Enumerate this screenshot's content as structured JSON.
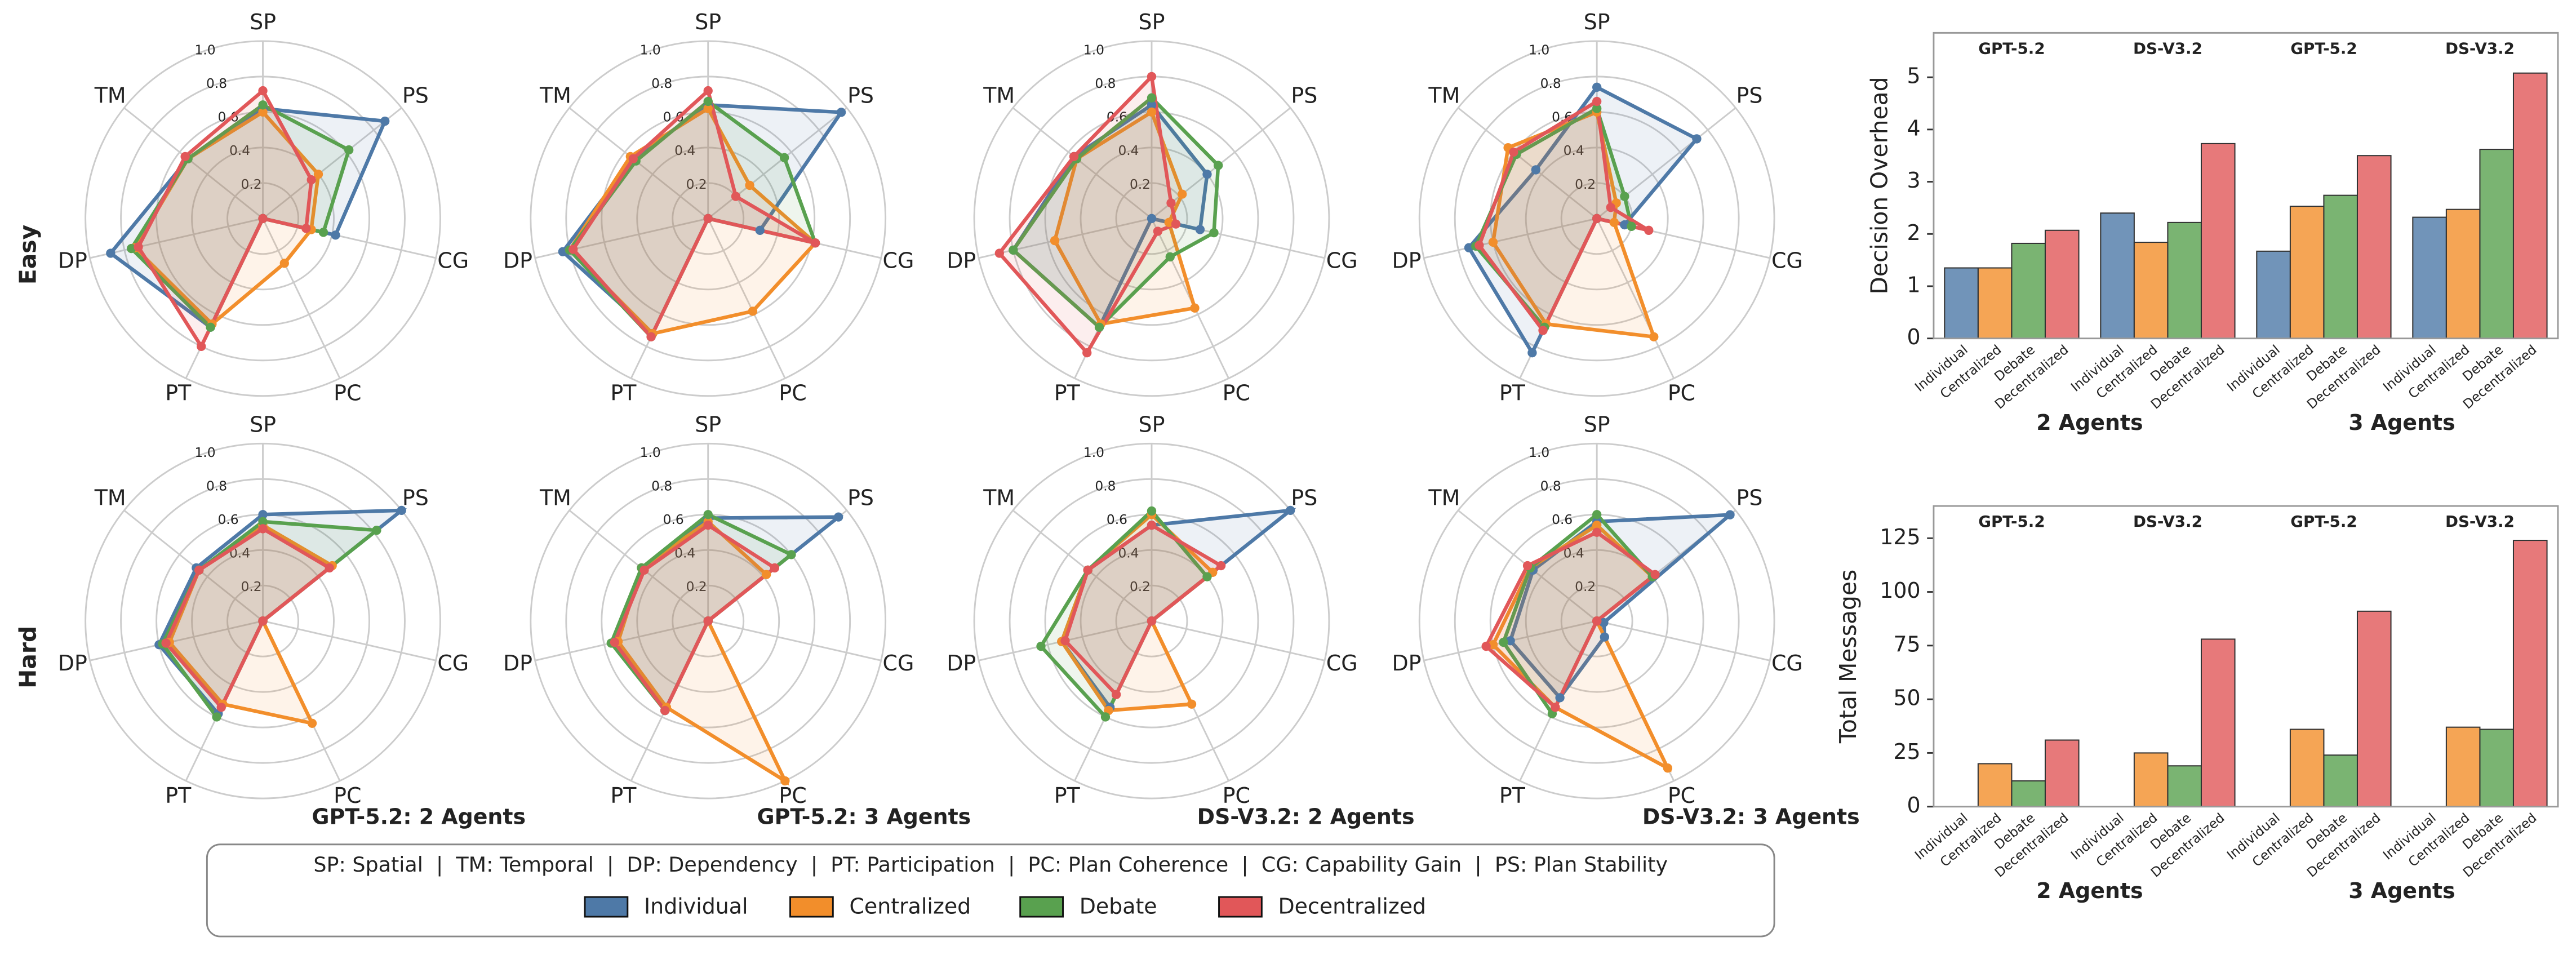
{
  "chart_data": [
    {
      "type": "radar",
      "row_label": "Easy",
      "axes": [
        "SP",
        "PS",
        "CG",
        "PC",
        "PT",
        "DP",
        "TM"
      ],
      "rlim": [
        0,
        1
      ],
      "rticks": [
        0.2,
        0.4,
        0.6,
        0.8,
        {
          "value": 1,
          "label": "1.0"
        }
      ],
      "series": [
        {
          "name": "Individual",
          "color": "#4e79a7",
          "values": [
            0.62,
            0.88,
            0.42,
            0,
            0.68,
            0.88,
            0.54
          ]
        },
        {
          "name": "Centralized",
          "color": "#f28e2b",
          "values": [
            0.6,
            0.4,
            0.28,
            0.28,
            0.66,
            0.74,
            0.54
          ]
        },
        {
          "name": "Debate",
          "color": "#59a14f",
          "values": [
            0.64,
            0.62,
            0.35,
            0,
            0.68,
            0.76,
            0.54
          ]
        },
        {
          "name": "Decentralized",
          "color": "#e15759",
          "values": [
            0.72,
            0.35,
            0.25,
            0,
            0.8,
            0.72,
            0.56
          ]
        }
      ]
    },
    {
      "type": "radar",
      "axes": [
        "SP",
        "PS",
        "CG",
        "PC",
        "PT",
        "DP",
        "TM"
      ],
      "rlim": [
        0,
        1
      ],
      "rticks": [
        0.2,
        0.4,
        0.6,
        0.8,
        {
          "value": 1,
          "label": "1.0"
        }
      ],
      "series": [
        {
          "name": "Individual",
          "color": "#4e79a7",
          "values": [
            0.64,
            0.96,
            0.3,
            0,
            0.72,
            0.84,
            0.54
          ]
        },
        {
          "name": "Centralized",
          "color": "#f28e2b",
          "values": [
            0.62,
            0.3,
            0.62,
            0.58,
            0.72,
            0.8,
            0.56
          ]
        },
        {
          "name": "Debate",
          "color": "#59a14f",
          "values": [
            0.66,
            0.55,
            0.62,
            0,
            0.74,
            0.8,
            0.52
          ]
        },
        {
          "name": "Decentralized",
          "color": "#e15759",
          "values": [
            0.72,
            0.2,
            0.62,
            0,
            0.74,
            0.78,
            0.54
          ]
        }
      ]
    },
    {
      "type": "radar",
      "axes": [
        "SP",
        "PS",
        "CG",
        "PC",
        "PT",
        "DP",
        "TM"
      ],
      "rlim": [
        0,
        1
      ],
      "rticks": [
        0.2,
        0.4,
        0.6,
        0.8,
        {
          "value": 1,
          "label": "1.0"
        }
      ],
      "series": [
        {
          "name": "Individual",
          "color": "#4e79a7",
          "values": [
            0.64,
            0.4,
            0.28,
            0,
            0.68,
            0.8,
            0.56
          ]
        },
        {
          "name": "Centralized",
          "color": "#f28e2b",
          "values": [
            0.6,
            0.22,
            0.1,
            0.56,
            0.66,
            0.56,
            0.54
          ]
        },
        {
          "name": "Debate",
          "color": "#59a14f",
          "values": [
            0.68,
            0.48,
            0.36,
            0.24,
            0.68,
            0.8,
            0.54
          ]
        },
        {
          "name": "Decentralized",
          "color": "#e15759",
          "values": [
            0.8,
            0.14,
            0.14,
            0.08,
            0.84,
            0.88,
            0.56
          ]
        }
      ]
    },
    {
      "type": "radar",
      "axes": [
        "SP",
        "PS",
        "CG",
        "PC",
        "PT",
        "DP",
        "TM"
      ],
      "rlim": [
        0,
        1
      ],
      "rticks": [
        0.2,
        0.4,
        0.6,
        0.8,
        {
          "value": 1,
          "label": "1.0"
        }
      ],
      "series": [
        {
          "name": "Individual",
          "color": "#4e79a7",
          "values": [
            0.74,
            0.72,
            0.16,
            0,
            0.84,
            0.74,
            0.44
          ]
        },
        {
          "name": "Centralized",
          "color": "#f28e2b",
          "values": [
            0.6,
            0.14,
            0.1,
            0.74,
            0.66,
            0.6,
            0.64
          ]
        },
        {
          "name": "Debate",
          "color": "#59a14f",
          "values": [
            0.62,
            0.2,
            0.2,
            0,
            0.68,
            0.7,
            0.58
          ]
        },
        {
          "name": "Decentralized",
          "color": "#e15759",
          "values": [
            0.66,
            0.1,
            0.3,
            0,
            0.7,
            0.68,
            0.6
          ]
        }
      ]
    },
    {
      "type": "radar",
      "row_label": "Hard",
      "title": "GPT-5.2: 2 Agents",
      "axes": [
        "SP",
        "PS",
        "CG",
        "PC",
        "PT",
        "DP",
        "TM"
      ],
      "rlim": [
        0,
        1
      ],
      "rticks": [
        0.2,
        0.4,
        0.6,
        0.8,
        {
          "value": 1,
          "label": "1.0"
        }
      ],
      "series": [
        {
          "name": "Individual",
          "color": "#4e79a7",
          "values": [
            0.6,
            1.0,
            0,
            0,
            0.58,
            0.6,
            0.48
          ]
        },
        {
          "name": "Centralized",
          "color": "#f28e2b",
          "values": [
            0.54,
            0.5,
            0,
            0.64,
            0.52,
            0.54,
            0.46
          ]
        },
        {
          "name": "Debate",
          "color": "#59a14f",
          "values": [
            0.56,
            0.82,
            0,
            0,
            0.6,
            0.58,
            0.46
          ]
        },
        {
          "name": "Decentralized",
          "color": "#e15759",
          "values": [
            0.52,
            0.48,
            0,
            0,
            0.54,
            0.56,
            0.46
          ]
        }
      ]
    },
    {
      "type": "radar",
      "title": "GPT-5.2: 3 Agents",
      "axes": [
        "SP",
        "PS",
        "CG",
        "PC",
        "PT",
        "DP",
        "TM"
      ],
      "rlim": [
        0,
        1
      ],
      "rticks": [
        0.2,
        0.4,
        0.6,
        0.8,
        {
          "value": 1,
          "label": "1.0"
        }
      ],
      "series": [
        {
          "name": "Individual",
          "color": "#4e79a7",
          "values": [
            0.58,
            0.94,
            0,
            0,
            0.56,
            0.54,
            0.48
          ]
        },
        {
          "name": "Centralized",
          "color": "#f28e2b",
          "values": [
            0.56,
            0.42,
            0,
            1.0,
            0.54,
            0.52,
            0.48
          ]
        },
        {
          "name": "Debate",
          "color": "#59a14f",
          "values": [
            0.6,
            0.6,
            0,
            0,
            0.56,
            0.56,
            0.48
          ]
        },
        {
          "name": "Decentralized",
          "color": "#e15759",
          "values": [
            0.54,
            0.48,
            0,
            0,
            0.56,
            0.54,
            0.46
          ]
        }
      ]
    },
    {
      "type": "radar",
      "title": "DS-V3.2: 2 Agents",
      "axes": [
        "SP",
        "PS",
        "CG",
        "PC",
        "PT",
        "DP",
        "TM"
      ],
      "rlim": [
        0,
        1
      ],
      "rticks": [
        0.2,
        0.4,
        0.6,
        0.8,
        {
          "value": 1,
          "label": "1.0"
        }
      ],
      "series": [
        {
          "name": "Individual",
          "color": "#4e79a7",
          "values": [
            0.54,
            1.0,
            0,
            0,
            0.54,
            0.52,
            0.46
          ]
        },
        {
          "name": "Centralized",
          "color": "#f28e2b",
          "values": [
            0.6,
            0.44,
            0,
            0.52,
            0.56,
            0.52,
            0.46
          ]
        },
        {
          "name": "Debate",
          "color": "#59a14f",
          "values": [
            0.62,
            0.4,
            0,
            0,
            0.6,
            0.64,
            0.46
          ]
        },
        {
          "name": "Decentralized",
          "color": "#e15759",
          "values": [
            0.54,
            0.5,
            0,
            0,
            0.46,
            0.5,
            0.46
          ]
        }
      ]
    },
    {
      "type": "radar",
      "title": "DS-V3.2: 3 Agents",
      "axes": [
        "SP",
        "PS",
        "CG",
        "PC",
        "PT",
        "DP",
        "TM"
      ],
      "rlim": [
        0,
        1
      ],
      "rticks": [
        0.2,
        0.4,
        0.6,
        0.8,
        {
          "value": 1,
          "label": "1.0"
        }
      ],
      "series": [
        {
          "name": "Individual",
          "color": "#4e79a7",
          "values": [
            0.56,
            0.96,
            0.04,
            0.1,
            0.48,
            0.5,
            0.46
          ]
        },
        {
          "name": "Centralized",
          "color": "#f28e2b",
          "values": [
            0.54,
            0.4,
            0,
            0.92,
            0.54,
            0.6,
            0.48
          ]
        },
        {
          "name": "Debate",
          "color": "#59a14f",
          "values": [
            0.6,
            0.4,
            0,
            0,
            0.58,
            0.54,
            0.48
          ]
        },
        {
          "name": "Decentralized",
          "color": "#e15759",
          "values": [
            0.5,
            0.42,
            0,
            0,
            0.54,
            0.64,
            0.5
          ]
        }
      ]
    },
    {
      "type": "grouped_bar",
      "ylabel": "Decision Overhead",
      "groups": [
        "GPT-5.2",
        "DS-V3.2",
        "GPT-5.2",
        "DS-V3.2"
      ],
      "group_sets": [
        "2 Agents",
        "3 Agents"
      ],
      "ylim": [
        0,
        5.85
      ],
      "yticks": [
        0,
        1,
        2,
        3,
        4,
        5
      ],
      "series": [
        {
          "name": "Individual",
          "color": "#4e79a7",
          "values": [
            1.35,
            2.4,
            1.67,
            2.32
          ]
        },
        {
          "name": "Centralized",
          "color": "#f28e2b",
          "values": [
            1.35,
            1.84,
            2.53,
            2.47
          ]
        },
        {
          "name": "Debate",
          "color": "#59a14f",
          "values": [
            1.82,
            2.22,
            2.74,
            3.62
          ]
        },
        {
          "name": "Decentralized",
          "color": "#e15759",
          "values": [
            2.07,
            3.73,
            3.5,
            5.08
          ]
        }
      ]
    },
    {
      "type": "grouped_bar",
      "ylabel": "Total Messages",
      "groups": [
        "GPT-5.2",
        "DS-V3.2",
        "GPT-5.2",
        "DS-V3.2"
      ],
      "group_sets": [
        "2 Agents",
        "3 Agents"
      ],
      "ylim": [
        0,
        140
      ],
      "yticks": [
        0,
        25,
        50,
        75,
        100,
        125
      ],
      "series": [
        {
          "name": "Individual",
          "color": "#4e79a7",
          "values": [
            0,
            0,
            0,
            0
          ]
        },
        {
          "name": "Centralized",
          "color": "#f28e2b",
          "values": [
            20,
            25,
            36,
            37
          ]
        },
        {
          "name": "Debate",
          "color": "#59a14f",
          "values": [
            12,
            19,
            24,
            36
          ]
        },
        {
          "name": "Decentralized",
          "color": "#e15759",
          "values": [
            31,
            78,
            91,
            124
          ]
        }
      ]
    }
  ],
  "legend_note": "SP: Spatial  |  TM: Temporal  |  DP: Dependency  |  PT: Participation  |  PC: Plan Coherence  |  CG: Capability Gain  |  PS: Plan Stability"
}
